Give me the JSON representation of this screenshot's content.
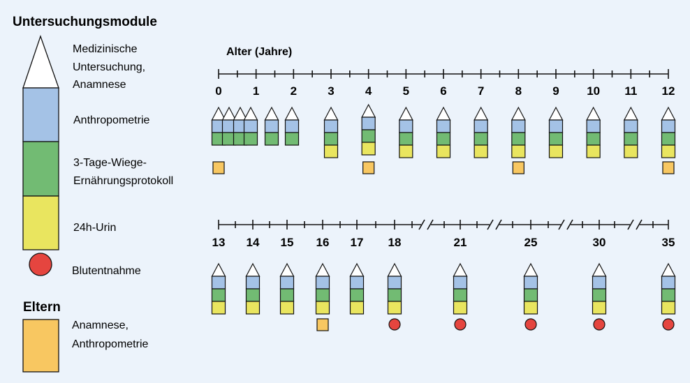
{
  "legend": {
    "title": "Untersuchungsmodule",
    "items": [
      {
        "key": "medical",
        "lines": [
          "Medizinische",
          "Untersuchung,",
          "Anamnese"
        ]
      },
      {
        "key": "anthropo",
        "lines": [
          "Anthropometrie"
        ]
      },
      {
        "key": "diet",
        "lines": [
          "3-Tage-Wiege-",
          "Ernährungsprotokoll"
        ]
      },
      {
        "key": "urine",
        "lines": [
          "24h-Urin"
        ]
      },
      {
        "key": "blood",
        "lines": [
          "Blutentnahme"
        ]
      }
    ],
    "parents_title": "Eltern",
    "parents_lines": [
      "Anamnese,",
      "Anthropometrie"
    ]
  },
  "colors": {
    "background": "#ecf3fb",
    "medical": "#ffffff",
    "anthropo": "#a4c2e6",
    "diet": "#72bb73",
    "urine": "#e9e55f",
    "blood": "#e5453f",
    "parents": "#f8c761",
    "stroke": "#111111"
  },
  "timeline": {
    "axis_label": "Alter (Jahre)",
    "row1": {
      "ticks": [
        "0",
        "1",
        "2",
        "3",
        "4",
        "5",
        "6",
        "7",
        "8",
        "9",
        "10",
        "11",
        "12"
      ],
      "visits": [
        {
          "age": "0",
          "modules": [
            "medical",
            "anthropo",
            "diet"
          ]
        },
        {
          "age": "0.25",
          "modules": [
            "medical",
            "anthropo",
            "diet"
          ]
        },
        {
          "age": "0.5",
          "modules": [
            "medical",
            "anthropo",
            "diet"
          ]
        },
        {
          "age": "0.75",
          "modules": [
            "medical",
            "anthropo",
            "diet"
          ]
        },
        {
          "age": "1.5",
          "modules": [
            "medical",
            "anthropo",
            "diet"
          ]
        },
        {
          "age": "2",
          "modules": [
            "medical",
            "anthropo",
            "diet"
          ]
        },
        {
          "age": "3",
          "modules": [
            "medical",
            "anthropo",
            "diet",
            "urine"
          ]
        },
        {
          "age": "4",
          "modules": [
            "medical",
            "anthropo",
            "diet",
            "urine"
          ]
        },
        {
          "age": "5",
          "modules": [
            "medical",
            "anthropo",
            "diet",
            "urine"
          ]
        },
        {
          "age": "6",
          "modules": [
            "medical",
            "anthropo",
            "diet",
            "urine"
          ]
        },
        {
          "age": "7",
          "modules": [
            "medical",
            "anthropo",
            "diet",
            "urine"
          ]
        },
        {
          "age": "8",
          "modules": [
            "medical",
            "anthropo",
            "diet",
            "urine"
          ]
        },
        {
          "age": "9",
          "modules": [
            "medical",
            "anthropo",
            "diet",
            "urine"
          ]
        },
        {
          "age": "10",
          "modules": [
            "medical",
            "anthropo",
            "diet",
            "urine"
          ]
        },
        {
          "age": "11",
          "modules": [
            "medical",
            "anthropo",
            "diet",
            "urine"
          ]
        },
        {
          "age": "12",
          "modules": [
            "medical",
            "anthropo",
            "diet",
            "urine"
          ]
        }
      ],
      "parents_at": [
        "0",
        "4",
        "8",
        "12"
      ]
    },
    "row2": {
      "ticks": [
        "13",
        "14",
        "15",
        "16",
        "17",
        "18",
        "21",
        "25",
        "30",
        "35"
      ],
      "visits": [
        {
          "age": "13",
          "modules": [
            "medical",
            "anthropo",
            "diet",
            "urine"
          ]
        },
        {
          "age": "14",
          "modules": [
            "medical",
            "anthropo",
            "diet",
            "urine"
          ]
        },
        {
          "age": "15",
          "modules": [
            "medical",
            "anthropo",
            "diet",
            "urine"
          ]
        },
        {
          "age": "16",
          "modules": [
            "medical",
            "anthropo",
            "diet",
            "urine"
          ]
        },
        {
          "age": "17",
          "modules": [
            "medical",
            "anthropo",
            "diet",
            "urine"
          ]
        },
        {
          "age": "18",
          "modules": [
            "medical",
            "anthropo",
            "diet",
            "urine"
          ]
        },
        {
          "age": "21",
          "modules": [
            "medical",
            "anthropo",
            "diet",
            "urine"
          ]
        },
        {
          "age": "25",
          "modules": [
            "medical",
            "anthropo",
            "diet",
            "urine"
          ]
        },
        {
          "age": "30",
          "modules": [
            "medical",
            "anthropo",
            "diet",
            "urine"
          ]
        },
        {
          "age": "35",
          "modules": [
            "medical",
            "anthropo",
            "diet",
            "urine"
          ]
        }
      ],
      "parents_at": [
        "16"
      ],
      "blood_at": [
        "18",
        "21",
        "25",
        "30",
        "35"
      ]
    }
  }
}
